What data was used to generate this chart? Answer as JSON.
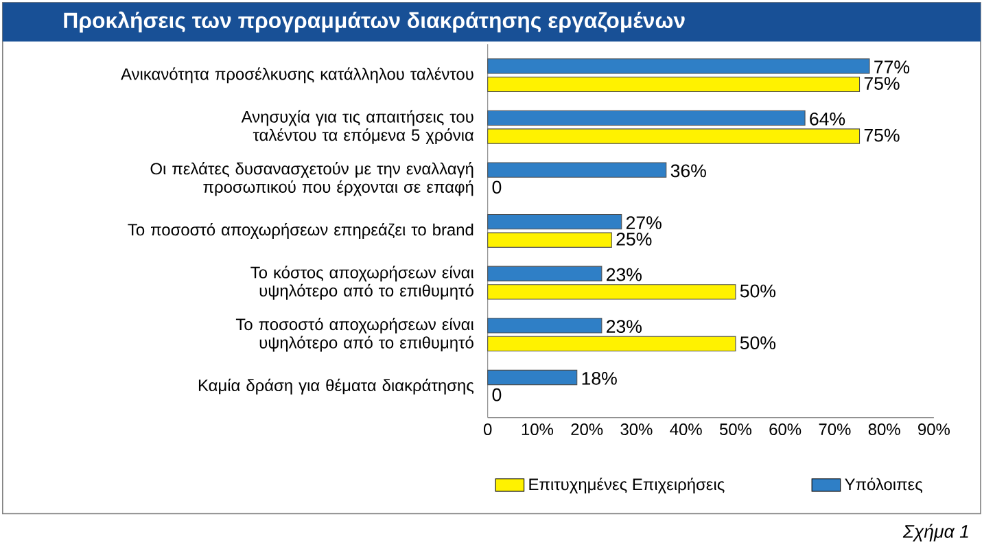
{
  "chart_data": {
    "type": "bar",
    "orientation": "horizontal",
    "title": "Προκλήσεις των προγραμμάτων διακράτησης εργαζομένων",
    "categories": [
      "Ανικανότητα προσέλκυσης κατάλληλου ταλέντου",
      "Ανησυχία για τις απαιτήσεις του ταλέντου τα επόμενα 5 χρόνια",
      "Οι πελάτες δυσανασχετούν με την εναλλαγή προσωπικού που έρχονται σε επαφή",
      "Το ποσοστό αποχωρήσεων επηρεάζει το brand",
      "Το κόστος αποχωρήσεων είναι υψηλότερο από το επιθυμητό",
      "Το ποσοστό αποχωρήσεων είναι υψηλότερο από το επιθυμητό",
      "Καμία δράση για θέματα διακράτησης"
    ],
    "series": [
      {
        "name": "Επιτυχημένες Επιχειρήσεις",
        "color": "#fff200",
        "values": [
          75,
          75,
          0,
          25,
          50,
          50,
          0
        ],
        "value_labels": [
          "75%",
          "75%",
          "0",
          "25%",
          "50%",
          "50%",
          "0"
        ]
      },
      {
        "name": "Υπόλοιπες",
        "color": "#2f7fc6",
        "values": [
          77,
          64,
          36,
          27,
          23,
          23,
          18
        ],
        "value_labels": [
          "77%",
          "64%",
          "36%",
          "27%",
          "23%",
          "23%",
          "18%"
        ]
      }
    ],
    "xlim": [
      0,
      90
    ],
    "xticks": [
      0,
      {
        "value": 10,
        "label": "10%"
      },
      {
        "value": 20,
        "label": "20%"
      },
      {
        "value": 30,
        "label": "30%"
      },
      {
        "value": 40,
        "label": "40%"
      },
      {
        "value": 50,
        "label": "50%"
      },
      {
        "value": 60,
        "label": "60%"
      },
      {
        "value": 70,
        "label": "70%"
      },
      {
        "value": 80,
        "label": "80%"
      },
      {
        "value": 90,
        "label": "90%"
      }
    ],
    "legend": "bottom",
    "grid": false,
    "annotations": [
      "Σχήμα 1"
    ]
  }
}
